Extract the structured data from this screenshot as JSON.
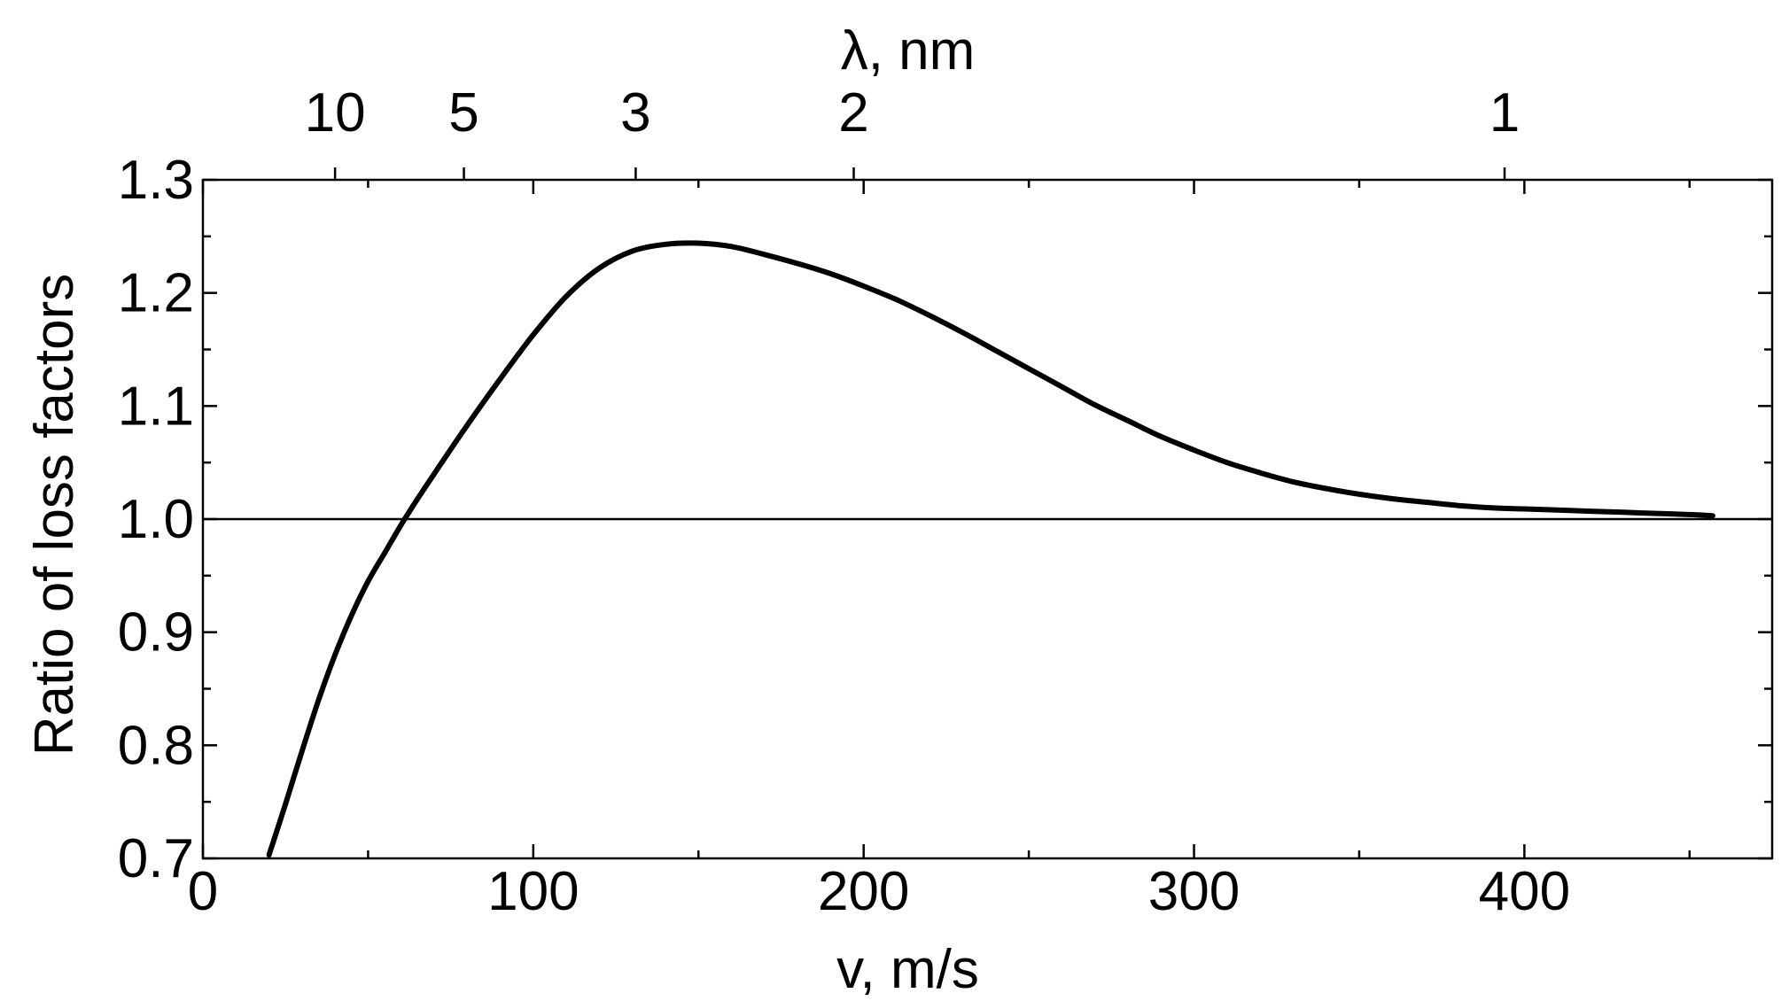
{
  "chart_data": {
    "type": "line",
    "title": "",
    "xlabel": "v, m/s",
    "ylabel": "Ratio of loss factors",
    "top_axis_label": "λ, nm",
    "xlim": [
      0,
      475
    ],
    "ylim": [
      0.7,
      1.3
    ],
    "x_ticks": [
      0,
      100,
      200,
      300,
      400
    ],
    "x_tick_labels": [
      "0",
      "100",
      "200",
      "300",
      "400"
    ],
    "x_minor_ticks": [
      50,
      150,
      250,
      350,
      450
    ],
    "y_ticks": [
      0.7,
      0.8,
      0.9,
      1.0,
      1.1,
      1.2,
      1.3
    ],
    "y_tick_labels": [
      "0.7",
      "0.8",
      "0.9",
      "1.0",
      "1.1",
      "1.2",
      "1.3"
    ],
    "y_minor_ticks": [
      0.75,
      0.85,
      0.95,
      1.05,
      1.15,
      1.25
    ],
    "top_ticks": [
      {
        "label": "10",
        "v": 40
      },
      {
        "label": "5",
        "v": 79
      },
      {
        "label": "3",
        "v": 131
      },
      {
        "label": "2",
        "v": 197
      },
      {
        "label": "1",
        "v": 394
      }
    ],
    "reference_line": {
      "y": 1.0
    },
    "grid": false,
    "series": [
      {
        "x": [
          20,
          25,
          30,
          35,
          40,
          45,
          50,
          55,
          60,
          65,
          70,
          80,
          90,
          100,
          110,
          120,
          130,
          140,
          150,
          160,
          170,
          180,
          190,
          200,
          210,
          220,
          230,
          240,
          250,
          260,
          270,
          280,
          290,
          300,
          310,
          320,
          330,
          340,
          350,
          360,
          370,
          380,
          390,
          400,
          410,
          420,
          430,
          440,
          450,
          457
        ],
        "y": [
          0.703,
          0.748,
          0.795,
          0.84,
          0.88,
          0.915,
          0.945,
          0.97,
          0.995,
          1.018,
          1.04,
          1.083,
          1.124,
          1.163,
          1.197,
          1.222,
          1.237,
          1.243,
          1.244,
          1.241,
          1.234,
          1.226,
          1.217,
          1.206,
          1.194,
          1.18,
          1.165,
          1.149,
          1.133,
          1.117,
          1.101,
          1.087,
          1.073,
          1.061,
          1.05,
          1.041,
          1.033,
          1.027,
          1.022,
          1.018,
          1.015,
          1.012,
          1.01,
          1.009,
          1.008,
          1.007,
          1.006,
          1.005,
          1.004,
          1.003
        ]
      }
    ]
  },
  "colors": {
    "line": "#000000",
    "axis": "#000000",
    "background": "#ffffff"
  }
}
